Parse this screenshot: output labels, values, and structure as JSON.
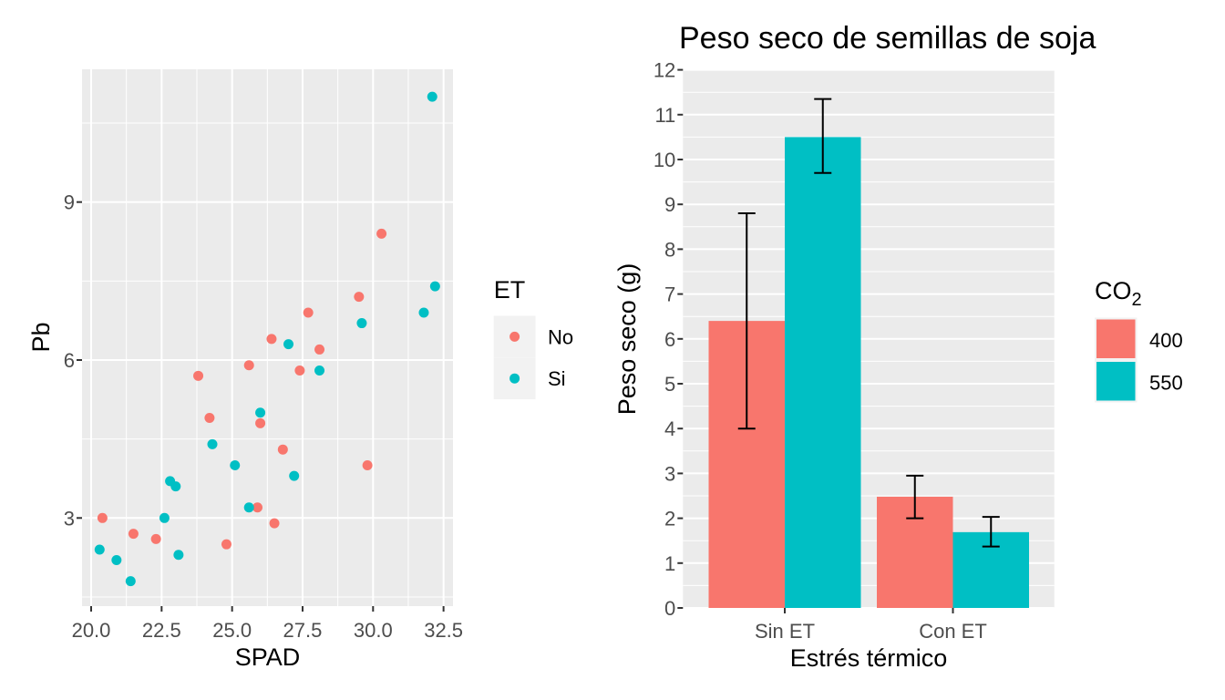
{
  "theme": {
    "background": "#FFFFFF",
    "panel_bg": "#EBEBEB",
    "grid_color": "#FFFFFF",
    "tick_color": "#333333",
    "axis_text_color": "#4D4D4D",
    "text_color": "#000000",
    "legend_key_bg": "#F2F2F2",
    "errorbar_color": "#000000",
    "color_no": "#F8766D",
    "color_si": "#00BFC4"
  },
  "chart_data": [
    {
      "type": "scatter",
      "title": "",
      "xlabel": "SPAD",
      "ylabel": "Pb",
      "xlim": [
        19.7,
        32.8
      ],
      "ylim": [
        1.3,
        11.5
      ],
      "grid": true,
      "x_ticks": {
        "values": [
          20.0,
          22.5,
          25.0,
          27.5,
          30.0,
          32.5
        ],
        "labels": [
          "20.0",
          "22.5",
          "25.0",
          "27.5",
          "30.0",
          "32.5"
        ]
      },
      "y_ticks": {
        "values": [
          3,
          6,
          9
        ],
        "labels": [
          "3",
          "6",
          "9"
        ]
      },
      "x_minor": [
        21.25,
        23.75,
        26.25,
        28.75,
        31.25
      ],
      "y_minor": [
        1.5,
        4.5,
        7.5,
        10.5
      ],
      "legend": {
        "title": "ET",
        "position": "right",
        "items": [
          {
            "label": "No",
            "color": "#F8766D"
          },
          {
            "label": "Si",
            "color": "#00BFC4"
          }
        ]
      },
      "series": [
        {
          "name": "No",
          "color": "#F8766D",
          "points": [
            [
              20.4,
              3.0
            ],
            [
              21.5,
              2.7
            ],
            [
              22.3,
              2.6
            ],
            [
              23.8,
              5.7
            ],
            [
              24.2,
              4.9
            ],
            [
              24.8,
              2.5
            ],
            [
              25.6,
              5.9
            ],
            [
              25.9,
              3.2
            ],
            [
              26.0,
              4.8
            ],
            [
              26.4,
              6.4
            ],
            [
              26.5,
              2.9
            ],
            [
              26.8,
              4.3
            ],
            [
              27.4,
              5.8
            ],
            [
              27.7,
              6.9
            ],
            [
              28.1,
              6.2
            ],
            [
              29.5,
              7.2
            ],
            [
              29.8,
              4.0
            ],
            [
              30.3,
              8.4
            ]
          ]
        },
        {
          "name": "Si",
          "color": "#00BFC4",
          "points": [
            [
              20.3,
              2.4
            ],
            [
              20.9,
              2.2
            ],
            [
              21.4,
              1.8
            ],
            [
              22.6,
              3.0
            ],
            [
              22.8,
              3.7
            ],
            [
              23.0,
              3.6
            ],
            [
              23.1,
              2.3
            ],
            [
              24.3,
              4.4
            ],
            [
              25.1,
              4.0
            ],
            [
              25.6,
              3.2
            ],
            [
              26.0,
              5.0
            ],
            [
              27.0,
              6.3
            ],
            [
              27.2,
              3.8
            ],
            [
              28.1,
              5.8
            ],
            [
              29.6,
              6.7
            ],
            [
              31.8,
              6.9
            ],
            [
              32.1,
              11.0
            ],
            [
              32.2,
              7.4
            ]
          ]
        }
      ]
    },
    {
      "type": "bar",
      "title": "Peso seco de semillas de soja",
      "xlabel": "Estrés térmico",
      "ylabel": "Peso seco (g)",
      "categories": [
        "Sin ET",
        "Con ET"
      ],
      "ylim": [
        0,
        12
      ],
      "grid": true,
      "y_ticks": {
        "values": [
          0,
          1,
          2,
          3,
          4,
          5,
          6,
          7,
          8,
          9,
          10,
          11,
          12
        ],
        "labels": [
          "0",
          "1",
          "2",
          "3",
          "4",
          "5",
          "6",
          "7",
          "8",
          "9",
          "10",
          "11",
          "12"
        ]
      },
      "y_minor": [
        0.5,
        1.5,
        2.5,
        3.5,
        4.5,
        5.5,
        6.5,
        7.5,
        8.5,
        9.5,
        10.5,
        11.5
      ],
      "legend": {
        "title": "CO",
        "title_sub": "2",
        "position": "right",
        "items": [
          {
            "label": "400",
            "color": "#F8766D"
          },
          {
            "label": "550",
            "color": "#00BFC4"
          }
        ]
      },
      "series": [
        {
          "name": "400",
          "color": "#F8766D",
          "values": [
            6.4,
            2.48
          ],
          "error_low": [
            4.0,
            2.0
          ],
          "error_high": [
            8.8,
            2.95
          ]
        },
        {
          "name": "550",
          "color": "#00BFC4",
          "values": [
            10.5,
            1.69
          ],
          "error_low": [
            9.7,
            1.37
          ],
          "error_high": [
            11.35,
            2.03
          ]
        }
      ]
    }
  ]
}
